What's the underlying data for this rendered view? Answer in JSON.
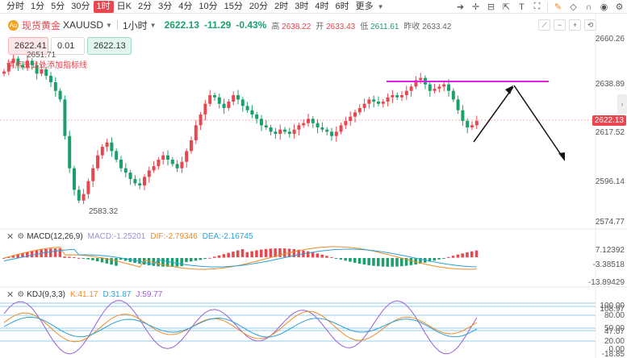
{
  "toolbar": {
    "periods": [
      "分时",
      "1分",
      "5分",
      "30分",
      "1时",
      "日K",
      "2分",
      "3分",
      "4分",
      "10分",
      "15分",
      "20分",
      "2时",
      "3时",
      "4时",
      "6时",
      "更多"
    ],
    "active_period": "1时",
    "icons": [
      "pointer-icon",
      "crosshair-icon",
      "ruler-icon",
      "measure-icon",
      "text-icon",
      "fullscreen-icon",
      "pencil-icon",
      "eraser-icon",
      "magnet-icon",
      "eye-icon",
      "settings-icon"
    ]
  },
  "symbol": {
    "name": "现货黄金",
    "code": "XAUUSD",
    "interval": "1小时",
    "price": "2622.13",
    "change": "-11.29",
    "change_pct": "-0.43%",
    "high_label": "高",
    "high": "2638.22",
    "open_label": "开",
    "open": "2633.43",
    "low_label": "低",
    "low": "2611.61",
    "prev_label": "昨收",
    "prev": "2633.42"
  },
  "order": {
    "sell_price": "2622.41",
    "quantity": "0.01",
    "buy_price": "2622.13"
  },
  "annotations": {
    "high_mark": "2651.71",
    "low_mark": "2583.32",
    "overlay_note": "请点击此处添加指标线"
  },
  "y_axis_main": [
    "2660.26",
    "2638.89",
    "2617.52",
    "2596.14",
    "2574.77"
  ],
  "current_price_tag": "2622.13",
  "macd": {
    "name": "MACD(12,26,9)",
    "macd": "MACD:-1.25201",
    "dif": "DIF:-2.79346",
    "dea": "DEA:-2.16745",
    "y_axis": [
      "7.12392",
      "-3.38518",
      "-13.89429"
    ]
  },
  "kdj": {
    "name": "KDJ(9,3,3)",
    "k": "K:41.17",
    "d": "D:31.87",
    "j": "J:59.77",
    "y_axis": [
      "100.00",
      "108.97",
      "80.00",
      "50.00",
      "47.07",
      "20.00",
      "0.00",
      "-18.85"
    ]
  },
  "colors": {
    "up": "#e8474f",
    "down": "#1aa06a",
    "drawing_line": "#e020e0",
    "arrow": "#111111",
    "dif": "#f08a24",
    "dea": "#2c9fd8",
    "k": "#f08a24",
    "d": "#2c9fd8",
    "j": "#9a5fd0"
  }
}
